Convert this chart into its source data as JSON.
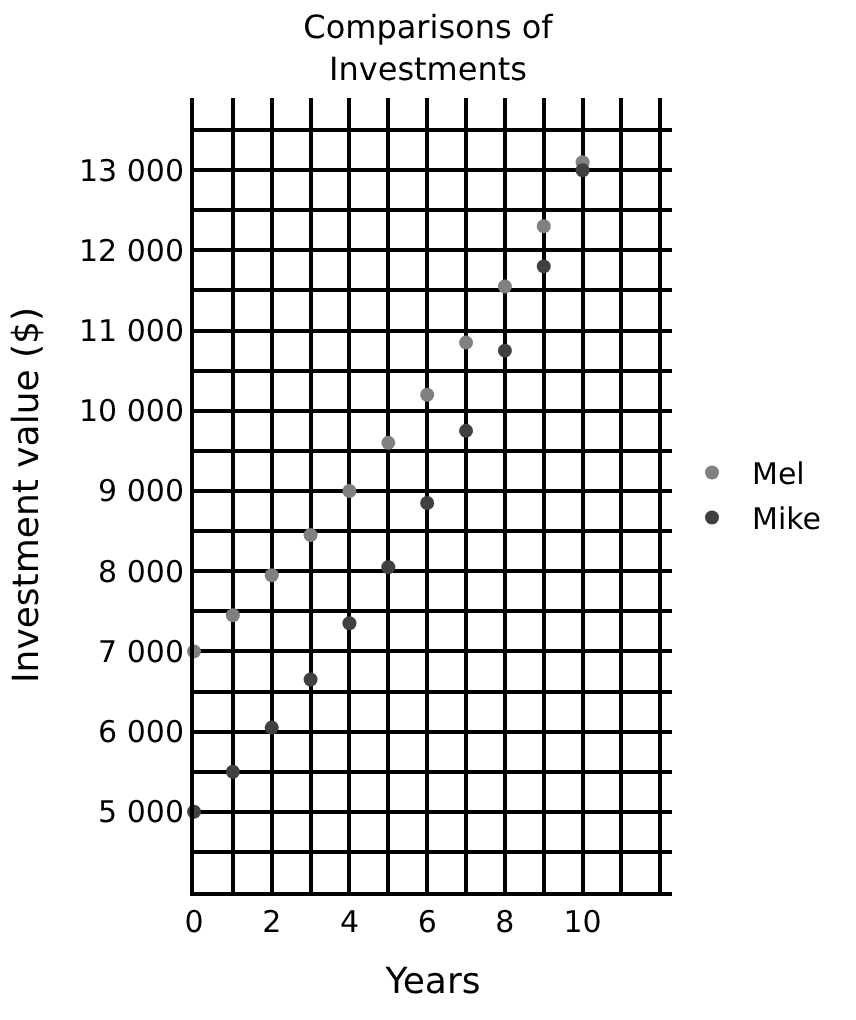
{
  "chart_data": {
    "type": "scatter",
    "title": "Comparisons of\nInvestments",
    "xlabel": "Years",
    "ylabel": "Investment value ($)",
    "x": [
      0,
      1,
      2,
      3,
      4,
      5,
      6,
      7,
      8,
      9,
      10
    ],
    "series": [
      {
        "name": "Mel",
        "color": "#808080",
        "values": [
          7000,
          7450,
          7950,
          8450,
          9000,
          9600,
          10200,
          10850,
          11550,
          12300,
          13100
        ]
      },
      {
        "name": "Mike",
        "color": "#404040",
        "values": [
          5000,
          5500,
          6050,
          6650,
          7350,
          8050,
          8850,
          9750,
          10750,
          11800,
          13000
        ]
      }
    ],
    "xlim": [
      0,
      12.3
    ],
    "ylim": [
      4000,
      13900
    ],
    "xticks": [
      0,
      {
        "value": 1,
        "label": null
      },
      2,
      {
        "value": 3,
        "label": null
      },
      4,
      {
        "value": 5,
        "label": null
      },
      6,
      {
        "value": 7,
        "label": null
      },
      8,
      {
        "value": 9,
        "label": null
      },
      10,
      {
        "value": 11,
        "label": null
      },
      {
        "value": 12,
        "label": null
      }
    ],
    "yticks": [
      {
        "value": 4500,
        "label": null
      },
      {
        "value": 5000,
        "label": "5 000"
      },
      {
        "value": 5500,
        "label": null
      },
      {
        "value": 6000,
        "label": "6 000"
      },
      {
        "value": 6500,
        "label": null
      },
      {
        "value": 7000,
        "label": "7 000"
      },
      {
        "value": 7500,
        "label": null
      },
      {
        "value": 8000,
        "label": "8 000"
      },
      {
        "value": 8500,
        "label": null
      },
      {
        "value": 9000,
        "label": "9 000"
      },
      {
        "value": 9500,
        "label": null
      },
      {
        "value": 10000,
        "label": "10 000"
      },
      {
        "value": 10500,
        "label": null
      },
      {
        "value": 11000,
        "label": "11 000"
      },
      {
        "value": 11500,
        "label": null
      },
      {
        "value": 12000,
        "label": "12 000"
      },
      {
        "value": 12500,
        "label": null
      },
      {
        "value": 13000,
        "label": "13 000"
      },
      {
        "value": 13500,
        "label": null
      }
    ],
    "grid": true,
    "legend": "right",
    "marker": "circle"
  }
}
